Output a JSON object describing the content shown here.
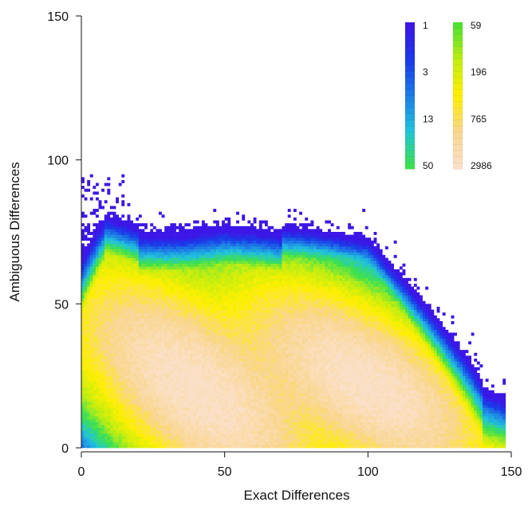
{
  "chart_data": {
    "type": "heatmap",
    "xlabel": "Exact Differences",
    "ylabel": "Ambiguous Differences",
    "xlim": [
      0,
      150
    ],
    "ylim": [
      0,
      150
    ],
    "xticks": [
      0,
      50,
      100,
      150
    ],
    "yticks": [
      0,
      50,
      100,
      150
    ],
    "color_scale": "log",
    "bin_count_range": [
      1,
      2986
    ],
    "colorbar": {
      "placement": "top-right",
      "columns": [
        {
          "labels": [
            "1",
            "3",
            "13",
            "50"
          ],
          "colors": [
            "#3c16e6",
            "#1a3ae8",
            "#1d7de6",
            "#21c3dc",
            "#3ce050"
          ]
        },
        {
          "labels": [
            "59",
            "196",
            "765",
            "2986"
          ],
          "colors": [
            "#4ce22e",
            "#c2ee10",
            "#ffef00",
            "#f9d68c",
            "#fbe0c8"
          ]
        }
      ]
    },
    "density_modes": [
      {
        "exact": 40,
        "ambiguous": 20,
        "peak_count": 2986
      },
      {
        "exact": 100,
        "ambiguous": 22,
        "peak_count": 2986
      }
    ]
  }
}
